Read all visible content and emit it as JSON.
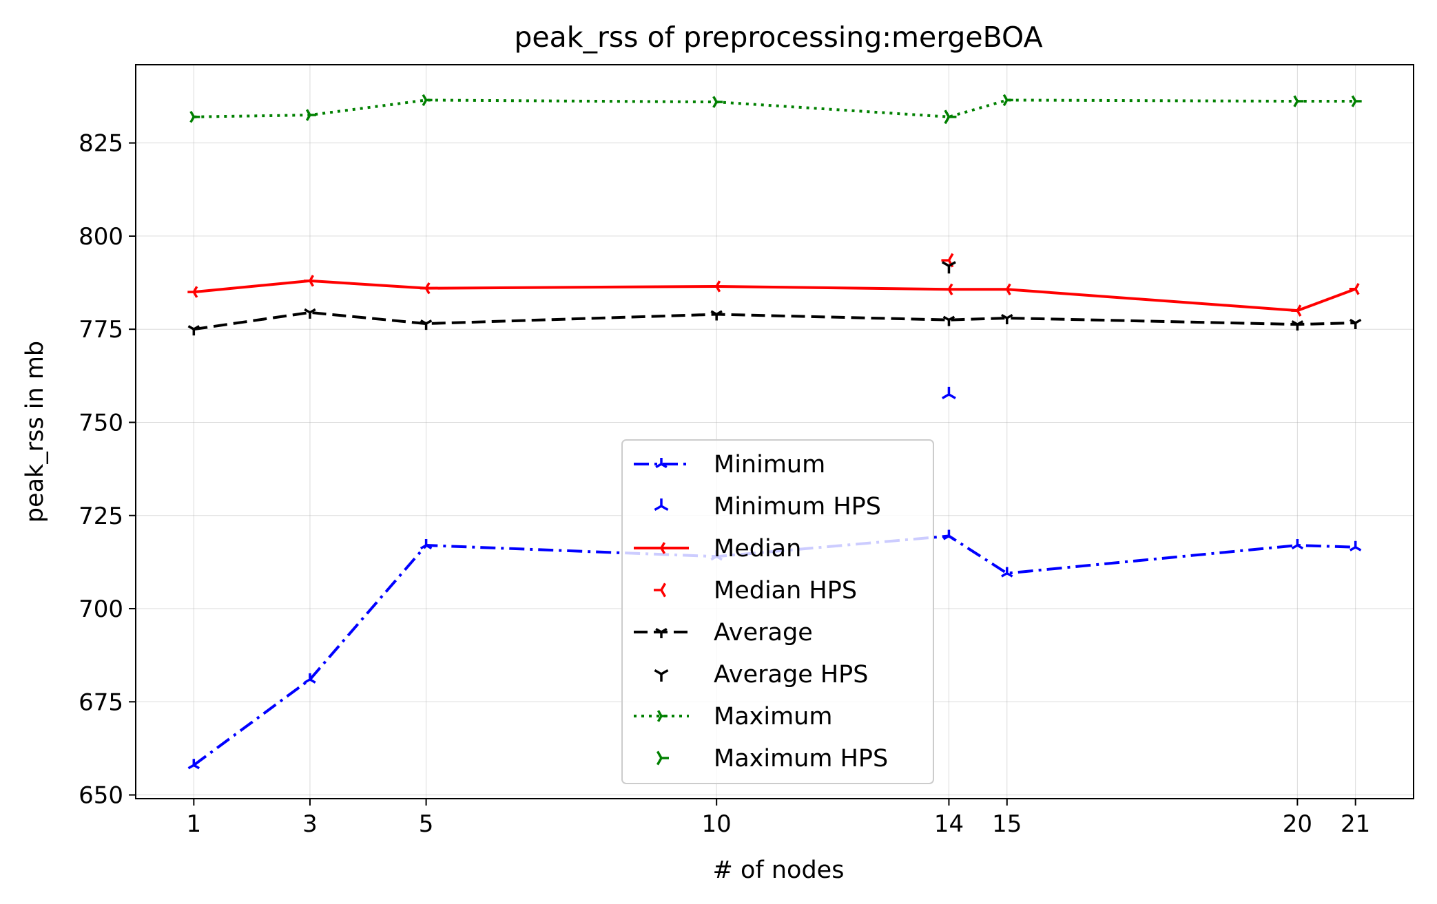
{
  "chart_data": {
    "type": "line",
    "title": "peak_rss of preprocessing:mergeBOA",
    "xlabel": "# of nodes",
    "ylabel": "peak_rss in mb",
    "x": [
      1,
      3,
      5,
      10,
      14,
      15,
      20,
      21
    ],
    "xlim": [
      0,
      22
    ],
    "ylim": [
      649,
      846
    ],
    "xticks": [
      1,
      3,
      5,
      10,
      14,
      15,
      20,
      21
    ],
    "yticks": [
      650,
      675,
      700,
      725,
      750,
      775,
      800,
      825
    ],
    "grid": true,
    "legend_position": "lower-center",
    "series": [
      {
        "name": "Minimum",
        "color": "#0000ff",
        "style": "dashdot",
        "values": [
          658,
          681,
          717,
          714,
          719.5,
          709.5,
          717,
          716.5
        ]
      },
      {
        "name": "Minimum HPS",
        "color": "#0000ff",
        "style": "marker",
        "points": [
          [
            14,
            757.5
          ]
        ]
      },
      {
        "name": "Median",
        "color": "#ff0000",
        "style": "solid",
        "values": [
          785,
          788,
          786,
          786.5,
          785.7,
          785.7,
          780,
          785.8
        ]
      },
      {
        "name": "Median HPS",
        "color": "#ff0000",
        "style": "marker",
        "points": [
          [
            14,
            793.5
          ]
        ]
      },
      {
        "name": "Average",
        "color": "#000000",
        "style": "dashed",
        "values": [
          775,
          779.5,
          776.5,
          779,
          777.5,
          778,
          776.3,
          776.7
        ]
      },
      {
        "name": "Average HPS",
        "color": "#000000",
        "style": "marker",
        "points": [
          [
            14,
            792
          ]
        ]
      },
      {
        "name": "Maximum",
        "color": "#008000",
        "style": "dotted",
        "values": [
          832,
          832.5,
          836.5,
          836,
          832,
          836.5,
          836.2,
          836.2
        ]
      },
      {
        "name": "Maximum HPS",
        "color": "#008000",
        "style": "marker",
        "points": [
          [
            14,
            832
          ]
        ]
      }
    ]
  }
}
